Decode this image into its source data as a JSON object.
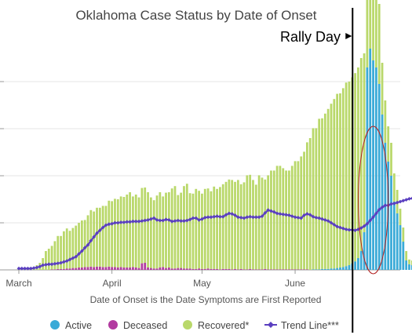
{
  "chart_data": {
    "type": "bar",
    "title": "Oklahoma Case Status by Date of Onset",
    "xlabel": "Date of Onset is the Date Symptoms are First Reported",
    "ylabel": "",
    "ylim": [
      0,
      500
    ],
    "x_start": "2020-03-01",
    "x_end": "2020-07-06",
    "x_ticks": [
      {
        "label": "March",
        "date": "2020-03-01"
      },
      {
        "label": "April",
        "date": "2020-04-01"
      },
      {
        "label": "May",
        "date": "2020-05-01"
      },
      {
        "label": "June",
        "date": "2020-06-01"
      }
    ],
    "y_ticks": [
      0,
      100,
      200,
      300,
      400
    ],
    "grid": true,
    "legend": "bottom",
    "series": [
      {
        "name": "Active",
        "kind": "bar",
        "color": "#3aaad7",
        "values": [
          0,
          0,
          0,
          0,
          0,
          0,
          0,
          0,
          0,
          0,
          0,
          0,
          0,
          0,
          0,
          0,
          0,
          0,
          0,
          0,
          0,
          0,
          0,
          0,
          0,
          0,
          0,
          0,
          0,
          0,
          0,
          0,
          0,
          0,
          0,
          0,
          0,
          0,
          0,
          0,
          0,
          0,
          0,
          0,
          0,
          0,
          0,
          0,
          0,
          0,
          0,
          0,
          0,
          0,
          0,
          0,
          0,
          0,
          0,
          0,
          0,
          0,
          0,
          0,
          0,
          0,
          0,
          0,
          0,
          0,
          0,
          0,
          0,
          0,
          0,
          0,
          0,
          0,
          0,
          0,
          0,
          0,
          0,
          0,
          0,
          0,
          0,
          0,
          0,
          0,
          0,
          0,
          0,
          0,
          0,
          0,
          0,
          0,
          1,
          1,
          1,
          2,
          2,
          2,
          3,
          3,
          4,
          5,
          6,
          8,
          10,
          14,
          18,
          25,
          40,
          80,
          430,
          470,
          445,
          430,
          395,
          330,
          270,
          230,
          200,
          145,
          120,
          95,
          60,
          20,
          12,
          10
        ]
      },
      {
        "name": "Deceased",
        "kind": "bar",
        "color": "#b23aa0",
        "values": [
          0,
          0,
          0,
          0,
          0,
          0,
          0,
          0,
          0,
          0,
          0,
          1,
          1,
          2,
          2,
          2,
          3,
          3,
          4,
          4,
          5,
          5,
          6,
          6,
          7,
          6,
          7,
          7,
          6,
          6,
          7,
          6,
          6,
          5,
          6,
          5,
          5,
          5,
          6,
          5,
          4,
          14,
          15,
          5,
          4,
          3,
          3,
          5,
          6,
          4,
          5,
          3,
          3,
          4,
          4,
          3,
          3,
          3,
          2,
          2,
          3,
          2,
          2,
          3,
          2,
          2,
          2,
          1,
          2,
          2,
          2,
          1,
          2,
          1,
          2,
          1,
          1,
          2,
          1,
          1,
          1,
          1,
          2,
          1,
          1,
          1,
          1,
          1,
          1,
          1,
          1,
          1,
          1,
          1,
          1,
          1,
          1,
          0,
          0,
          0,
          0,
          0,
          0,
          0,
          0,
          0,
          0,
          0,
          0,
          0,
          0,
          0,
          0,
          0,
          0,
          0,
          0,
          0,
          0,
          0,
          0,
          0,
          0,
          0,
          0,
          0,
          0,
          0,
          0,
          0,
          0,
          0
        ]
      },
      {
        "name": "Recovered*",
        "kind": "bar",
        "color": "#b9d86a",
        "values": [
          0,
          0,
          0,
          0,
          0,
          5,
          10,
          15,
          25,
          40,
          45,
          50,
          60,
          70,
          70,
          80,
          85,
          80,
          85,
          90,
          95,
          100,
          100,
          110,
          120,
          118,
          125,
          125,
          130,
          130,
          140,
          140,
          145,
          145,
          150,
          150,
          155,
          160,
          150,
          155,
          150,
          160,
          160,
          160,
          150,
          145,
          155,
          160,
          150,
          160,
          160,
          170,
          175,
          155,
          160,
          175,
          180,
          160,
          160,
          170,
          165,
          160,
          170,
          170,
          165,
          175,
          170,
          175,
          180,
          185,
          190,
          190,
          185,
          190,
          180,
          185,
          200,
          200,
          190,
          180,
          200,
          195,
          190,
          200,
          210,
          210,
          220,
          220,
          215,
          210,
          210,
          220,
          230,
          230,
          240,
          250,
          270,
          280,
          300,
          300,
          320,
          320,
          330,
          340,
          350,
          360,
          370,
          370,
          380,
          390,
          390,
          395,
          400,
          405,
          410,
          380,
          380,
          360,
          200,
          170,
          170,
          110,
          90,
          75,
          70,
          60,
          50,
          35,
          30,
          20,
          10,
          10
        ]
      },
      {
        "name": "Trend Line***",
        "kind": "line",
        "color": "#5a3fc0",
        "values": [
          3,
          3,
          3,
          3,
          3,
          4,
          5,
          7,
          10,
          11,
          12,
          12,
          13,
          14,
          15,
          17,
          19,
          22,
          25,
          28,
          34,
          40,
          47,
          53,
          62,
          70,
          78,
          84,
          90,
          95,
          97,
          98,
          100,
          100,
          101,
          101,
          102,
          102,
          103,
          103,
          103,
          104,
          105,
          106,
          108,
          110,
          106,
          105,
          105,
          107,
          106,
          103,
          104,
          105,
          104,
          104,
          105,
          107,
          110,
          110,
          106,
          108,
          111,
          112,
          112,
          113,
          114,
          113,
          113,
          117,
          120,
          119,
          116,
          112,
          111,
          110,
          112,
          113,
          112,
          112,
          112,
          114,
          121,
          127,
          125,
          123,
          120,
          119,
          118,
          117,
          116,
          114,
          112,
          111,
          110,
          116,
          119,
          117,
          113,
          111,
          110,
          108,
          106,
          104,
          100,
          96,
          92,
          90,
          88,
          86,
          85,
          85,
          84,
          86,
          89,
          93,
          98,
          105,
          112,
          120,
          128,
          133,
          137,
          137,
          140,
          141,
          143,
          145,
          147,
          149,
          151,
          152
        ]
      }
    ],
    "annotations": [
      {
        "text": "Rally Day",
        "date": "2020-06-20"
      }
    ]
  }
}
